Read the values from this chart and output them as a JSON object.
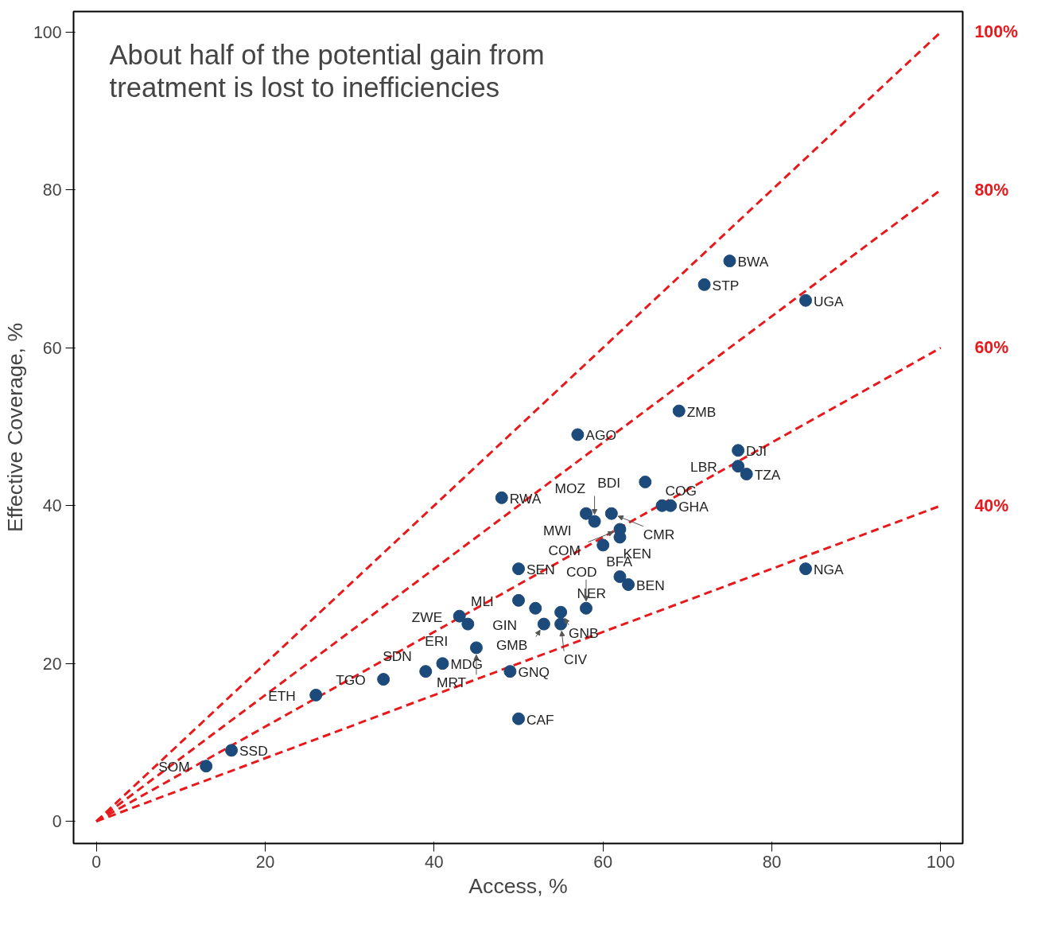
{
  "chart_data": {
    "type": "scatter",
    "title": "About half of the potential gain from\ntreatment is lost to inefficiencies",
    "xlabel": "Access, %",
    "ylabel": "Effective Coverage, %",
    "xlim": [
      -2.7,
      102.6
    ],
    "ylim": [
      -2.8,
      102.6
    ],
    "xticks": [
      0,
      20,
      40,
      60,
      80,
      100
    ],
    "yticks": [
      0,
      20,
      40,
      60,
      80,
      100
    ],
    "y2lim": [
      -2.8,
      102.6
    ],
    "y2ticks": [
      {
        "value": 40,
        "label": "40%"
      },
      {
        "value": 60,
        "label": "60%"
      },
      {
        "value": 80,
        "label": "80%"
      },
      {
        "value": 100,
        "label": "100%"
      }
    ],
    "marker": "circle",
    "line_style": "dashed",
    "grid": false,
    "series": [
      {
        "type": "line",
        "marker": "none",
        "color": "#e8191c",
        "x": [
          0,
          100
        ],
        "values": [
          0,
          100
        ]
      },
      {
        "type": "line",
        "marker": "none",
        "color": "#e8191c",
        "x": [
          0,
          100
        ],
        "values": [
          0,
          80
        ]
      },
      {
        "type": "line",
        "marker": "none",
        "color": "#e8191c",
        "x": [
          0,
          100
        ],
        "values": [
          0,
          60
        ]
      },
      {
        "type": "line",
        "marker": "none",
        "color": "#e8191c",
        "x": [
          0,
          100
        ],
        "values": [
          0,
          40
        ]
      },
      {
        "color": "#1c4a7a",
        "x": [
          75,
          72,
          84,
          69,
          57,
          76,
          76,
          77,
          65,
          48,
          50,
          84,
          67,
          68,
          58,
          61,
          59,
          62,
          62,
          60,
          62,
          63,
          50,
          52,
          55,
          58,
          43,
          44,
          53,
          55,
          45,
          41,
          39,
          34,
          49,
          50,
          26,
          16,
          13
        ],
        "values": [
          71,
          68,
          66,
          52,
          49,
          47,
          45,
          44,
          43,
          41,
          32,
          32,
          40,
          40,
          39,
          39,
          38,
          37,
          36,
          35,
          31,
          30,
          28,
          27,
          26.5,
          27,
          26,
          25,
          25,
          25,
          22,
          20,
          19,
          18,
          19,
          13,
          16,
          9,
          7
        ]
      }
    ],
    "annotations": [
      {
        "text": "BWA",
        "x": 75,
        "y": 71
      },
      {
        "text": "STP",
        "x": 72,
        "y": 68
      },
      {
        "text": "UGA",
        "x": 84,
        "y": 66
      },
      {
        "text": "ZMB",
        "x": 69,
        "y": 52
      },
      {
        "text": "AGO",
        "x": 57,
        "y": 49
      },
      {
        "text": "DJI",
        "x": 76,
        "y": 47
      },
      {
        "text": "LBR",
        "x": 76,
        "y": 45
      },
      {
        "text": "TZA",
        "x": 77,
        "y": 44
      },
      {
        "text": "BDI",
        "x": 65,
        "y": 43
      },
      {
        "text": "RWA",
        "x": 48,
        "y": 41
      },
      {
        "text": "SEN",
        "x": 50,
        "y": 32
      },
      {
        "text": "NGA",
        "x": 84,
        "y": 32
      },
      {
        "text": "COG",
        "x": 67,
        "y": 40
      },
      {
        "text": "GHA",
        "x": 68,
        "y": 40
      },
      {
        "text": "MWI",
        "x": 58,
        "y": 39
      },
      {
        "text": "CMR",
        "x": 61,
        "y": 39
      },
      {
        "text": "MOZ",
        "x": 59,
        "y": 38
      },
      {
        "text": "COM",
        "x": 62,
        "y": 37
      },
      {
        "text": "KEN",
        "x": 62,
        "y": 36
      },
      {
        "text": "BFA",
        "x": 60,
        "y": 35
      },
      {
        "text": "NER",
        "x": 62,
        "y": 31
      },
      {
        "text": "BEN",
        "x": 63,
        "y": 30
      },
      {
        "text": "MLI",
        "x": 50,
        "y": 28
      },
      {
        "text": "GIN",
        "x": 52,
        "y": 27
      },
      {
        "text": "GNB",
        "x": 55,
        "y": 26.5
      },
      {
        "text": "COD",
        "x": 58,
        "y": 27
      },
      {
        "text": "ZWE",
        "x": 43,
        "y": 26
      },
      {
        "text": "ERI",
        "x": 44,
        "y": 25
      },
      {
        "text": "GMB",
        "x": 53,
        "y": 25
      },
      {
        "text": "CIV",
        "x": 55,
        "y": 25
      },
      {
        "text": "MRT",
        "x": 45,
        "y": 22
      },
      {
        "text": "MDG",
        "x": 41,
        "y": 20
      },
      {
        "text": "SDN",
        "x": 39,
        "y": 19
      },
      {
        "text": "TGO",
        "x": 34,
        "y": 18
      },
      {
        "text": "GNQ",
        "x": 49,
        "y": 19
      },
      {
        "text": "CAF",
        "x": 50,
        "y": 13
      },
      {
        "text": "ETH",
        "x": 26,
        "y": 16
      },
      {
        "text": "SSD",
        "x": 16,
        "y": 9
      },
      {
        "text": "SOM",
        "x": 13,
        "y": 7
      }
    ]
  }
}
